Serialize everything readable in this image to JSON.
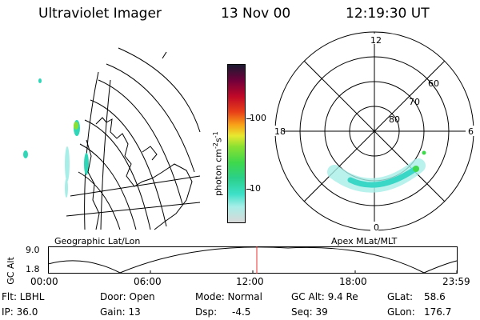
{
  "header": {
    "instrument": "Ultraviolet Imager",
    "date": "13 Nov 00",
    "time": "12:19:30 UT"
  },
  "left_panel": {
    "caption": "Geographic Lat/Lon"
  },
  "colorbar": {
    "unit_label": "photon cm",
    "unit_sup1": "-2",
    "unit_s": "s",
    "unit_sup2": "-1",
    "ticks": [
      "100",
      "10"
    ]
  },
  "right_panel": {
    "caption": "Apex MLat/MLT",
    "mlt_labels": {
      "top": "12",
      "left": "18",
      "right": "6",
      "bottom": "0"
    },
    "lat_labels": [
      "60",
      "70",
      "80"
    ]
  },
  "altitude_plot": {
    "axis_title": "GC Alt",
    "y_ticks": [
      "9.0",
      "1.8"
    ],
    "x_ticks": [
      "00:00",
      "06:00",
      "12:00",
      "18:00",
      "23:59"
    ]
  },
  "info": {
    "flt": "Flt: LBHL",
    "ip": "IP: 36.0",
    "door": "Door: Open",
    "gain": "Gain: 13",
    "mode": "Mode: Normal",
    "dsp_label": "Dsp:",
    "dsp_value": "-4.5",
    "gc_alt": "GC Alt: 9.4 Re",
    "seq": "Seq: 39",
    "glat_label": "GLat:",
    "glat_value": "58.6",
    "glon_label": "GLon:",
    "glon_value": "176.7"
  },
  "colors": {
    "colorbar": [
      "#d8d8d8",
      "#a8eee8",
      "#3ee0c8",
      "#2ad08a",
      "#3fd84c",
      "#8ae032",
      "#e8e830",
      "#f8a018",
      "#e84018",
      "#c00828",
      "#70003a",
      "#1a1a30"
    ],
    "auroral_oval": "#3ad6c6",
    "marker": "#e83030"
  }
}
